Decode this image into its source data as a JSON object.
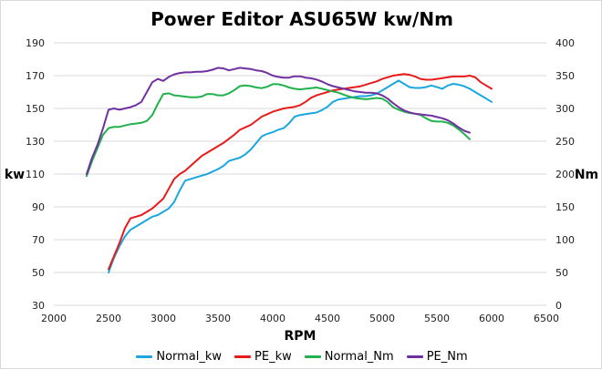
{
  "chart_data": {
    "type": "line",
    "title": "Power Editor ASU65W kw/Nm",
    "xlabel": "RPM",
    "ylabel_left": "kw",
    "ylabel_right": "Nm",
    "xlim": [
      2000,
      6500
    ],
    "xticks": [
      2000,
      2500,
      3000,
      3500,
      4000,
      4500,
      5000,
      5500,
      6000,
      6500
    ],
    "ylim_left": [
      30,
      190
    ],
    "yticks_left": [
      30,
      50,
      70,
      90,
      110,
      130,
      150,
      170,
      190
    ],
    "ylim_right": [
      0,
      400
    ],
    "yticks_right": [
      0,
      50,
      100,
      150,
      200,
      250,
      300,
      350,
      400
    ],
    "grid": "horizontal",
    "legend_position": "bottom",
    "series": [
      {
        "name": "Normal_kw",
        "axis": "left",
        "color": "#1AA7E0",
        "x": [
          2500,
          2550,
          2600,
          2650,
          2700,
          2750,
          2800,
          2850,
          2900,
          2950,
          3000,
          3050,
          3100,
          3150,
          3200,
          3250,
          3300,
          3350,
          3400,
          3450,
          3500,
          3550,
          3600,
          3650,
          3700,
          3750,
          3800,
          3850,
          3900,
          3950,
          4000,
          4050,
          4100,
          4150,
          4200,
          4250,
          4300,
          4350,
          4400,
          4450,
          4500,
          4550,
          4600,
          4650,
          4700,
          4750,
          4800,
          4850,
          4900,
          4950,
          5000,
          5050,
          5100,
          5150,
          5200,
          5250,
          5300,
          5350,
          5400,
          5450,
          5500,
          5550,
          5600,
          5650,
          5700,
          5750,
          5800,
          5850,
          5900,
          5950,
          6000
        ],
        "y": [
          50,
          59,
          66,
          72,
          76,
          78,
          80,
          82,
          84,
          85,
          87,
          89,
          93,
          100,
          106,
          107,
          108,
          109,
          110,
          111.5,
          113,
          115,
          118,
          119,
          120,
          122,
          125,
          129,
          133,
          134.5,
          135.5,
          137,
          138,
          141,
          145,
          146,
          146.5,
          147,
          147.5,
          149,
          151,
          154,
          155.5,
          156,
          156.5,
          157,
          157.5,
          157.5,
          158,
          159,
          161,
          163,
          165,
          167,
          165,
          163,
          162.5,
          162.5,
          163,
          164,
          163,
          162,
          164,
          165,
          164.5,
          163.5,
          162,
          160,
          158,
          156,
          154
        ]
      },
      {
        "name": "PE_kw",
        "axis": "left",
        "color": "#E81A1A",
        "x": [
          2500,
          2550,
          2600,
          2650,
          2700,
          2750,
          2800,
          2850,
          2900,
          2950,
          3000,
          3050,
          3100,
          3150,
          3200,
          3250,
          3300,
          3350,
          3400,
          3450,
          3500,
          3550,
          3600,
          3650,
          3700,
          3750,
          3800,
          3850,
          3900,
          3950,
          4000,
          4050,
          4100,
          4150,
          4200,
          4250,
          4300,
          4350,
          4400,
          4450,
          4500,
          4550,
          4600,
          4650,
          4700,
          4750,
          4800,
          4850,
          4900,
          4950,
          5000,
          5050,
          5100,
          5150,
          5200,
          5250,
          5300,
          5350,
          5400,
          5450,
          5500,
          5550,
          5600,
          5650,
          5700,
          5750,
          5800,
          5850,
          5900,
          5950,
          6000
        ],
        "y": [
          52,
          60,
          68,
          77,
          83,
          84,
          85,
          87,
          89,
          92,
          95,
          101,
          107,
          110,
          112,
          115,
          118,
          121,
          123,
          125,
          127,
          129,
          131.5,
          134,
          137,
          138.5,
          140,
          142.5,
          145,
          146.5,
          148,
          149,
          150,
          150.5,
          151,
          152,
          154,
          156.5,
          158,
          159,
          160,
          161,
          161.5,
          162,
          162.5,
          163,
          163.5,
          164.5,
          165.5,
          166.5,
          168,
          169,
          170,
          170.5,
          171,
          170.5,
          169.5,
          168,
          167.5,
          167.5,
          168,
          168.5,
          169,
          169.5,
          169.5,
          169.5,
          170,
          169,
          166,
          164,
          162
        ]
      },
      {
        "name": "Normal_Nm",
        "axis": "right",
        "color": "#22B14C",
        "x": [
          2300,
          2350,
          2400,
          2450,
          2500,
          2550,
          2600,
          2650,
          2700,
          2750,
          2800,
          2850,
          2900,
          2950,
          3000,
          3050,
          3100,
          3150,
          3200,
          3250,
          3300,
          3350,
          3400,
          3450,
          3500,
          3550,
          3600,
          3650,
          3700,
          3750,
          3800,
          3850,
          3900,
          3950,
          4000,
          4050,
          4100,
          4150,
          4200,
          4250,
          4300,
          4350,
          4400,
          4450,
          4500,
          4550,
          4600,
          4650,
          4700,
          4750,
          4800,
          4850,
          4900,
          4950,
          5000,
          5050,
          5100,
          5150,
          5200,
          5250,
          5300,
          5350,
          5400,
          5450,
          5500,
          5550,
          5600,
          5650,
          5700,
          5750,
          5800
        ],
        "y": [
          197,
          220,
          240,
          260,
          270,
          272,
          272,
          274,
          276,
          277,
          278,
          281,
          290,
          307,
          322,
          323,
          320,
          319,
          318,
          317,
          317,
          318,
          322,
          322,
          320,
          320,
          323,
          328,
          334,
          335,
          334,
          332,
          331,
          333,
          337,
          337,
          335,
          332,
          330,
          329,
          330,
          331,
          332,
          330,
          328,
          326,
          324,
          321,
          318,
          316,
          315,
          314,
          315,
          316,
          315,
          310,
          302,
          298,
          295,
          293,
          292,
          290,
          285,
          281,
          280,
          280,
          278,
          274,
          268,
          261,
          253
        ]
      },
      {
        "name": "PE_Nm",
        "axis": "right",
        "color": "#7030A0",
        "x": [
          2300,
          2350,
          2400,
          2450,
          2500,
          2550,
          2600,
          2650,
          2700,
          2750,
          2800,
          2850,
          2900,
          2950,
          3000,
          3050,
          3100,
          3150,
          3200,
          3250,
          3300,
          3350,
          3400,
          3450,
          3500,
          3550,
          3600,
          3650,
          3700,
          3750,
          3800,
          3850,
          3900,
          3950,
          4000,
          4050,
          4100,
          4150,
          4200,
          4250,
          4300,
          4350,
          4400,
          4450,
          4500,
          4550,
          4600,
          4650,
          4700,
          4750,
          4800,
          4850,
          4900,
          4950,
          5000,
          5050,
          5100,
          5150,
          5200,
          5250,
          5300,
          5350,
          5400,
          5450,
          5500,
          5550,
          5600,
          5650,
          5700,
          5750,
          5800
        ],
        "y": [
          200,
          225,
          245,
          270,
          298,
          300,
          298,
          300,
          302,
          305,
          310,
          325,
          340,
          345,
          342,
          348,
          352,
          354,
          355,
          355,
          356,
          356,
          357,
          359,
          362,
          361,
          358,
          360,
          362,
          361,
          360,
          358,
          357,
          354,
          350,
          348,
          347,
          347,
          349,
          349,
          347,
          346,
          344,
          341,
          337,
          334,
          332,
          330,
          328,
          326,
          325,
          324,
          324,
          323,
          320,
          315,
          308,
          302,
          297,
          294,
          292,
          291,
          290,
          289,
          287,
          285,
          282,
          277,
          271,
          266,
          263
        ]
      }
    ]
  }
}
